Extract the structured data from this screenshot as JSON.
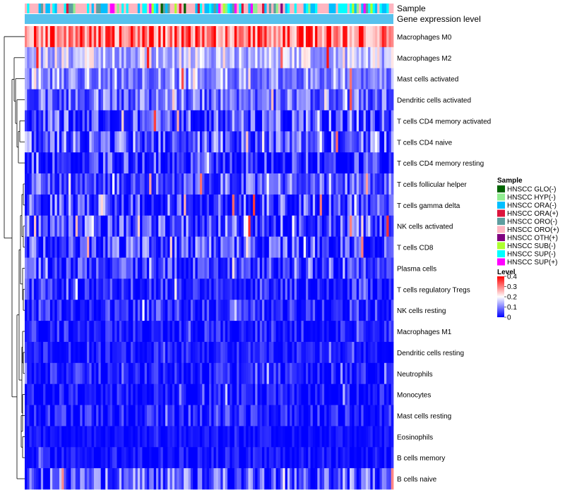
{
  "chart_data": {
    "type": "heatmap",
    "annotation_labels": {
      "sample": "Sample",
      "level": "Gene expression level"
    },
    "rows": [
      {
        "label": "Macrophages M0",
        "base": 0.3,
        "spread": 0.1
      },
      {
        "label": "Macrophages M2",
        "base": 0.14,
        "spread": 0.07
      },
      {
        "label": "Mast cells activated",
        "base": 0.1,
        "spread": 0.07
      },
      {
        "label": "Dendritic cells activated",
        "base": 0.07,
        "spread": 0.07
      },
      {
        "label": "T cells CD4 memory activated",
        "base": 0.05,
        "spread": 0.08
      },
      {
        "label": "T cells CD4 naive",
        "base": 0.06,
        "spread": 0.08
      },
      {
        "label": "T cells CD4 memory resting",
        "base": 0.03,
        "spread": 0.07
      },
      {
        "label": "T cells follicular helper",
        "base": 0.06,
        "spread": 0.07
      },
      {
        "label": "T cells gamma delta",
        "base": 0.05,
        "spread": 0.08
      },
      {
        "label": "NK cells activated",
        "base": 0.05,
        "spread": 0.08
      },
      {
        "label": "T cells CD8",
        "base": 0.04,
        "spread": 0.08
      },
      {
        "label": "Plasma cells",
        "base": 0.04,
        "spread": 0.06
      },
      {
        "label": "T cells regulatory  Tregs",
        "base": 0.03,
        "spread": 0.05
      },
      {
        "label": "NK cells resting",
        "base": 0.03,
        "spread": 0.05
      },
      {
        "label": "Macrophages M1",
        "base": 0.02,
        "spread": 0.04
      },
      {
        "label": "Dendritic cells resting",
        "base": 0.02,
        "spread": 0.03
      },
      {
        "label": "Neutrophils",
        "base": 0.02,
        "spread": 0.04
      },
      {
        "label": "Monocytes",
        "base": 0.01,
        "spread": 0.04
      },
      {
        "label": "Mast cells resting",
        "base": 0.02,
        "spread": 0.04
      },
      {
        "label": "Eosinophils",
        "base": 0.01,
        "spread": 0.02
      },
      {
        "label": "B cells memory",
        "base": 0.01,
        "spread": 0.03
      },
      {
        "label": "B cells naive",
        "base": 0.05,
        "spread": 0.08
      }
    ],
    "num_samples": 160,
    "value_range": [
      0,
      0.4
    ],
    "sample_legend": {
      "title": "Sample",
      "entries": [
        {
          "label": "HNSCC GLO(-)",
          "color": "#006400"
        },
        {
          "label": "HNSCC HYP(-)",
          "color": "#90ee90"
        },
        {
          "label": "HNSCC ORA(-)",
          "color": "#00bfff"
        },
        {
          "label": "HNSCC ORA(+)",
          "color": "#dc143c"
        },
        {
          "label": "HNSCC ORO(-)",
          "color": "#5f9ea0"
        },
        {
          "label": "HNSCC ORO(+)",
          "color": "#ffb6c1"
        },
        {
          "label": "HNSCC OTH(+)",
          "color": "#800080"
        },
        {
          "label": "HNSCC SUB(-)",
          "color": "#adff2f"
        },
        {
          "label": "HNSCC SUP(-)",
          "color": "#00ffff"
        },
        {
          "label": "HNSCC SUP(+)",
          "color": "#ff00ff"
        }
      ]
    },
    "level_legend": {
      "title": "Level",
      "ticks": [
        {
          "label": "0.4",
          "value": 0.4
        },
        {
          "label": "0.3",
          "value": 0.3
        },
        {
          "label": "0.2",
          "value": 0.2
        },
        {
          "label": "0.1",
          "value": 0.1
        },
        {
          "label": "0",
          "value": 0
        }
      ],
      "colors": {
        "low": "#0000ff",
        "mid": "#ffffff",
        "high": "#ff0000"
      }
    },
    "level_bar_color": "#56c1ed"
  }
}
